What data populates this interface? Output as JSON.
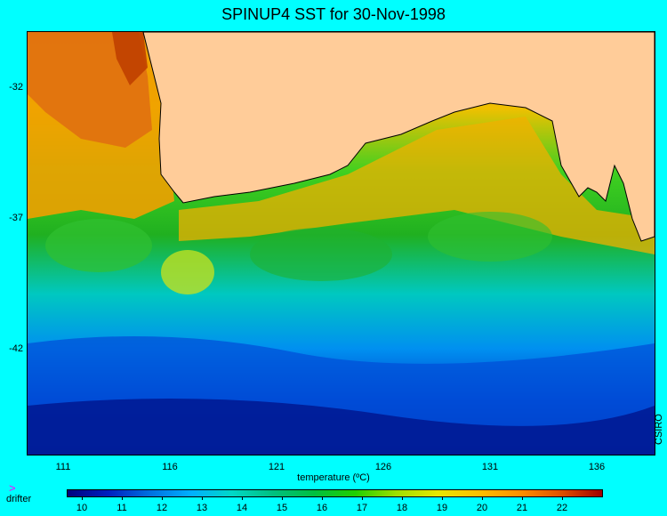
{
  "title": "SPINUP4 SST for 30-Nov-1998",
  "y_ticks": [
    "-32",
    "-37",
    "-42"
  ],
  "x_ticks": [
    "111",
    "116",
    "121",
    "126",
    "131",
    "136"
  ],
  "credit": "CSIRO",
  "legend": {
    "drifter_icon": "magenta-chevron-icon",
    "drifter_label": "drifter"
  },
  "colorbar": {
    "label": "temperature (ºC)",
    "ticks": [
      "10",
      "11",
      "12",
      "13",
      "14",
      "15",
      "16",
      "17",
      "18",
      "19",
      "20",
      "21",
      "22"
    ]
  },
  "colors": {
    "background": "#00ffff",
    "land": "#ffcc99",
    "scale": [
      "#00007f",
      "#0020c0",
      "#0070e0",
      "#00b0ff",
      "#00d8c8",
      "#00c080",
      "#00c040",
      "#20d000",
      "#a0e000",
      "#e8e800",
      "#ffc000",
      "#ff9000",
      "#e05000",
      "#a00000"
    ]
  }
}
